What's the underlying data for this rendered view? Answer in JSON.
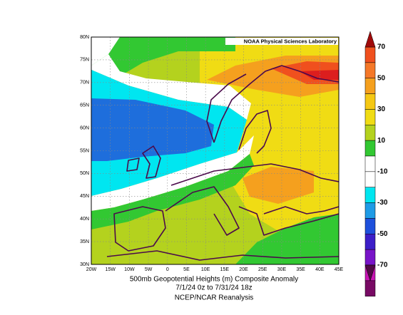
{
  "credit": "NOAA Physical Sciences Laboratory",
  "caption": {
    "title": "500mb Geopotential Heights (m)   Composite Anomaly",
    "dates": "7/1/24 0z  to 7/31/24 18z",
    "source": "NCEP/NCAR Reanalysis"
  },
  "lat_labels": [
    "80N",
    "75N",
    "70N",
    "65N",
    "60N",
    "55N",
    "50N",
    "45N",
    "40N",
    "35N",
    "30N"
  ],
  "lon_labels": [
    "20W",
    "15W",
    "10W",
    "5W",
    "0",
    "5E",
    "10E",
    "15E",
    "20E",
    "25E",
    "30E",
    "35E",
    "40E",
    "45E"
  ],
  "colorbar_labels": [
    70,
    50,
    30,
    10,
    -10,
    -30,
    -50,
    -70
  ]
}
